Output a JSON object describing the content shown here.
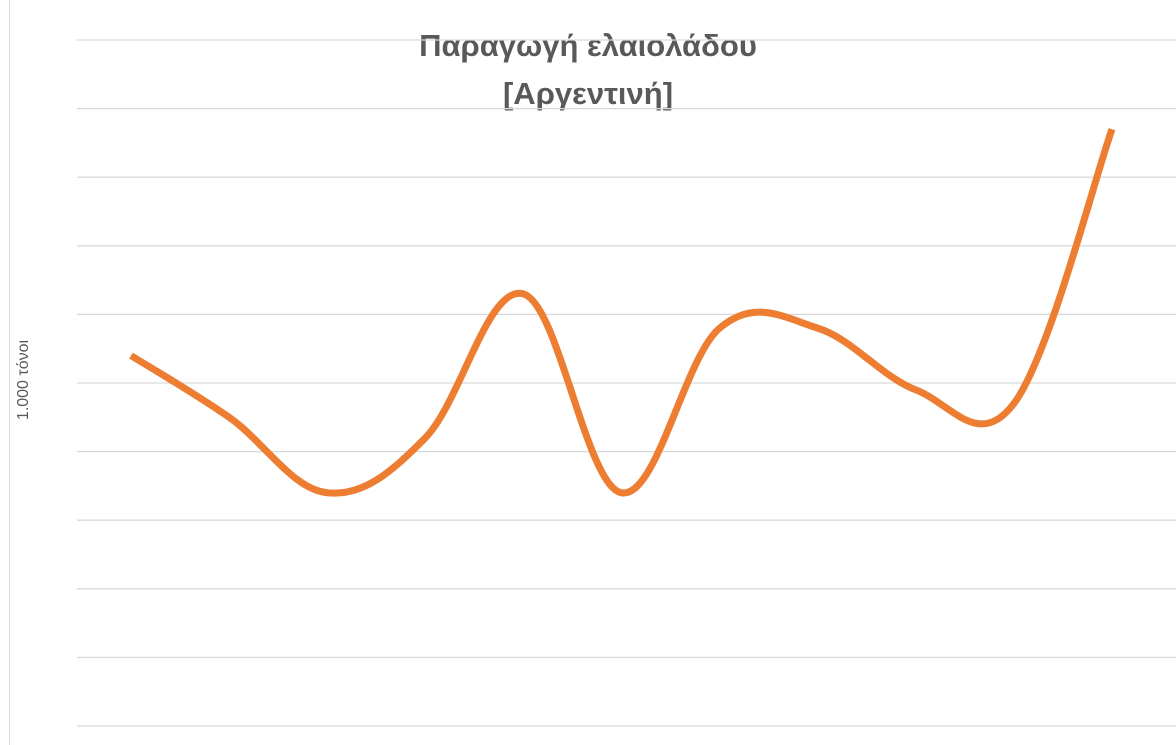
{
  "chart_data": {
    "type": "line",
    "title": "Παραγωγή ελαιολάδου",
    "subtitle": "[Αργεντινή]",
    "xlabel": "",
    "ylabel": "1.000 τόνοι",
    "ylim": [
      0,
      10
    ],
    "grid": true,
    "smooth": true,
    "colors": {
      "line": "#ed7d31",
      "grid": "#d9d9d9",
      "text": "#595959"
    },
    "x": [
      1,
      2,
      3,
      4,
      5,
      6,
      7,
      8,
      9,
      10,
      11
    ],
    "series": [
      {
        "values": [
          5.4,
          4.5,
          3.4,
          4.2,
          6.3,
          3.4,
          5.8,
          5.8,
          4.9,
          4.7,
          8.7
        ]
      }
    ]
  }
}
